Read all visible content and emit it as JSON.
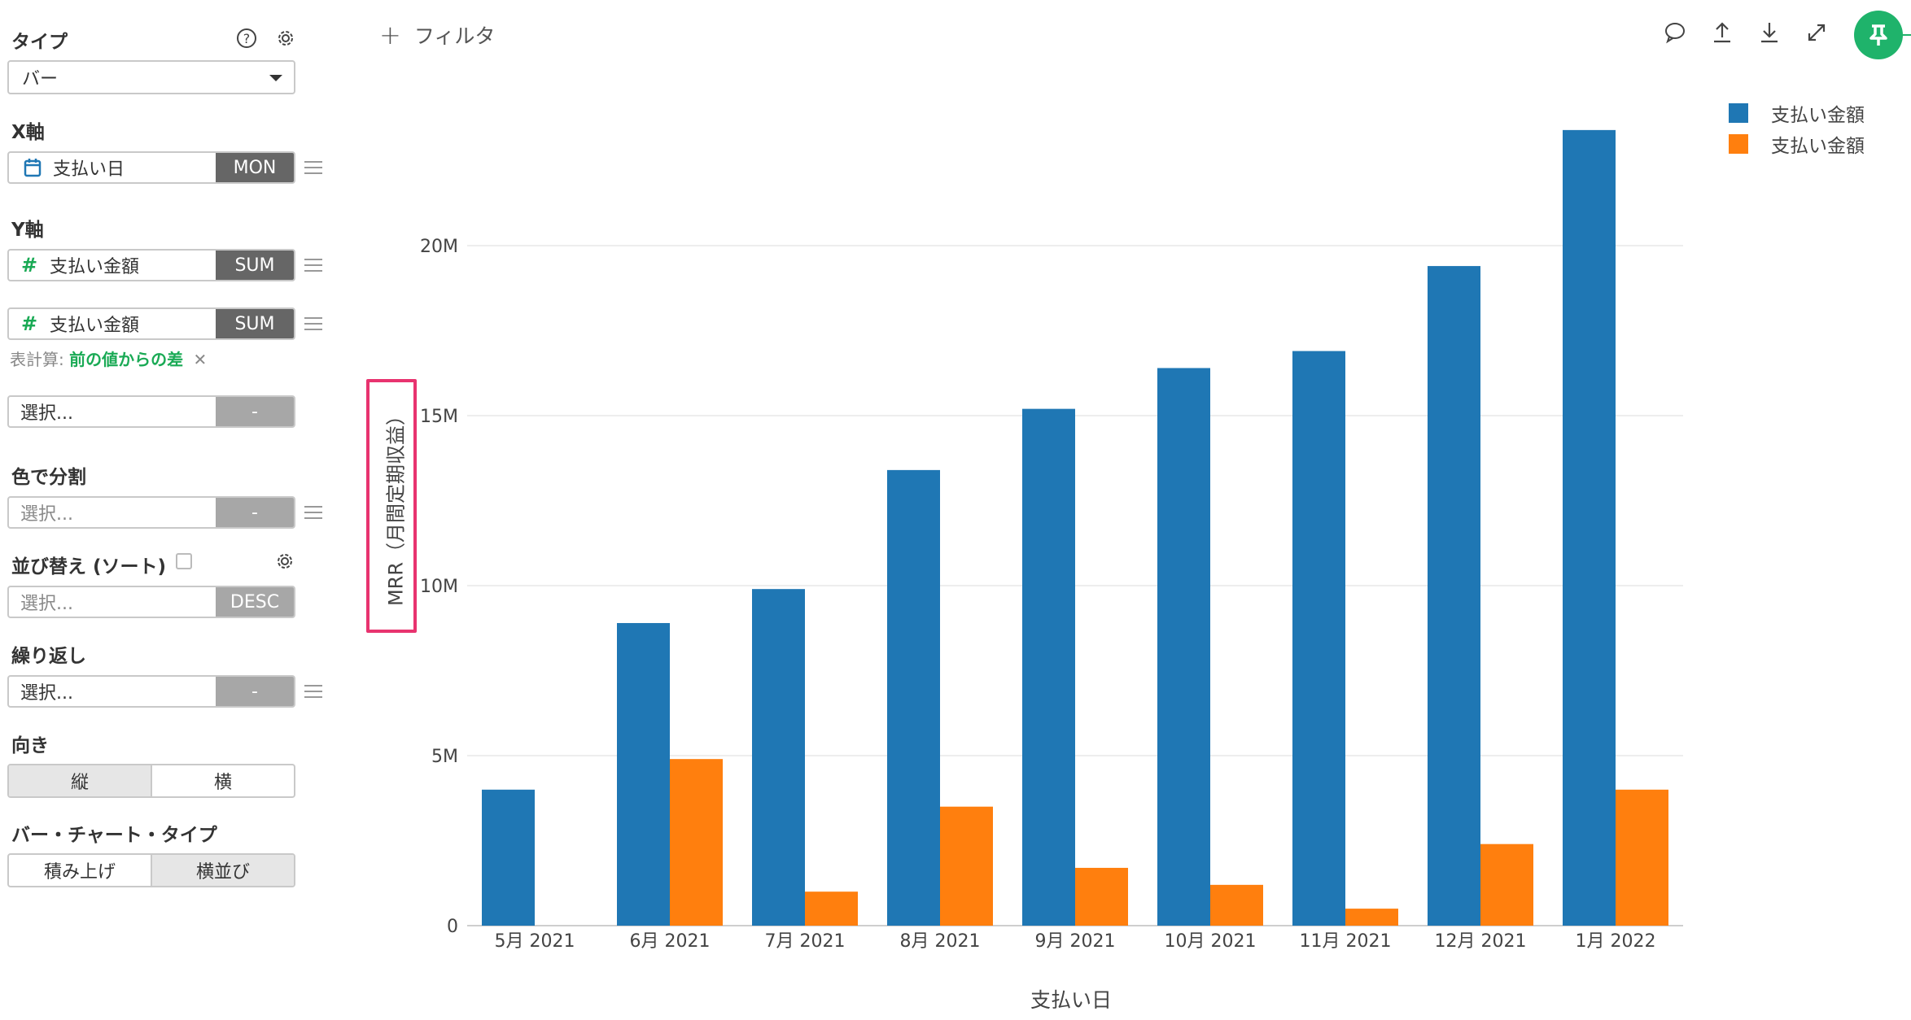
{
  "panel": {
    "type_label": "タイプ",
    "type_value": "バー",
    "x_axis_label": "X軸",
    "x_field": {
      "icon": "calendar-icon",
      "name": "支払い日",
      "agg": "MON"
    },
    "y_axis_label": "Y軸",
    "y_fields": [
      {
        "icon": "#",
        "name": "支払い金額",
        "agg": "SUM"
      },
      {
        "icon": "#",
        "name": "支払い金額",
        "agg": "SUM"
      }
    ],
    "calc_prefix": "表計算:",
    "calc_value": "前の値からの差",
    "calc_remove": "✕",
    "extra_select": {
      "placeholder": "選択...",
      "agg": "-"
    },
    "color_label": "色で分割",
    "color_select": {
      "placeholder": "選択...",
      "agg": "-"
    },
    "sort_label": "並び替え (ソート)",
    "sort_select": {
      "placeholder": "選択...",
      "agg": "DESC"
    },
    "repeat_label": "繰り返し",
    "repeat_select": {
      "placeholder": "選択...",
      "agg": "-"
    },
    "orientation_label": "向き",
    "orientation_options": [
      "縦",
      "横"
    ],
    "orientation_selected": "縦",
    "bartype_label": "バー・チャート・タイプ",
    "bartype_options": [
      "積み上げ",
      "横並び"
    ],
    "bartype_selected": "横並び"
  },
  "toolbar": {
    "filter_plus": "+",
    "filter_label": "フィルタ",
    "icons": [
      "comment-icon",
      "upload-icon",
      "download-icon",
      "expand-icon",
      "pin-icon"
    ]
  },
  "colors": {
    "series1": "#1f77b4",
    "series2": "#ff7f0e",
    "accent": "#1fb36b",
    "highlight": "#e8336f"
  },
  "chart_data": {
    "type": "bar",
    "xlabel": "支払い日",
    "ylabel": "MRR（月間定期収益）",
    "categories": [
      "5月 2021",
      "6月 2021",
      "7月 2021",
      "8月 2021",
      "9月 2021",
      "10月 2021",
      "11月 2021",
      "12月 2021",
      "1月 2022"
    ],
    "series": [
      {
        "name": "支払い金額",
        "color": "#1f77b4",
        "values": [
          4000000,
          8900000,
          9900000,
          13400000,
          15200000,
          16400000,
          16900000,
          19400000,
          23400000
        ]
      },
      {
        "name": "支払い金額",
        "color": "#ff7f0e",
        "values": [
          0,
          4900000,
          1000000,
          3500000,
          1700000,
          1200000,
          500000,
          2400000,
          4000000
        ]
      }
    ],
    "yticks": [
      0,
      5000000,
      10000000,
      15000000,
      20000000
    ],
    "ytick_labels": [
      "0",
      "5M",
      "10M",
      "15M",
      "20M"
    ],
    "ylim": [
      0,
      24000000
    ],
    "grid": true,
    "legend": "top-right"
  }
}
